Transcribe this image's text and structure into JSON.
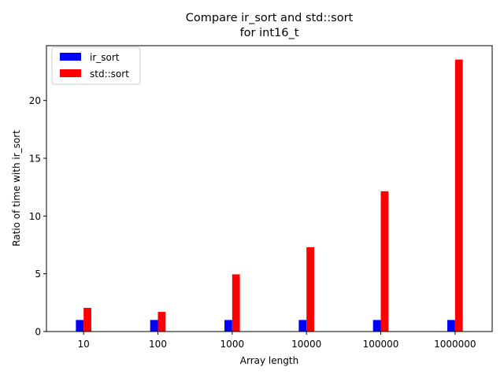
{
  "chart_data": {
    "type": "bar",
    "title": [
      "Compare ir_sort and std::sort",
      "for int16_t"
    ],
    "xlabel": "Array length",
    "ylabel": "Ratio of time with ir_sort",
    "categories": [
      "10",
      "100",
      "1000",
      "10000",
      "100000",
      "1000000"
    ],
    "series": [
      {
        "name": "ir_sort",
        "color": "#0000ff",
        "values": [
          1,
          1,
          1,
          1,
          1,
          1
        ]
      },
      {
        "name": "std::sort",
        "color": "#ff0000",
        "values": [
          2.05,
          1.7,
          4.95,
          7.3,
          12.15,
          23.55
        ]
      }
    ],
    "ylim": [
      0,
      24.75
    ],
    "yticks": [
      0,
      5,
      10,
      15,
      20
    ],
    "grid": false,
    "legend_position": "top-left"
  }
}
